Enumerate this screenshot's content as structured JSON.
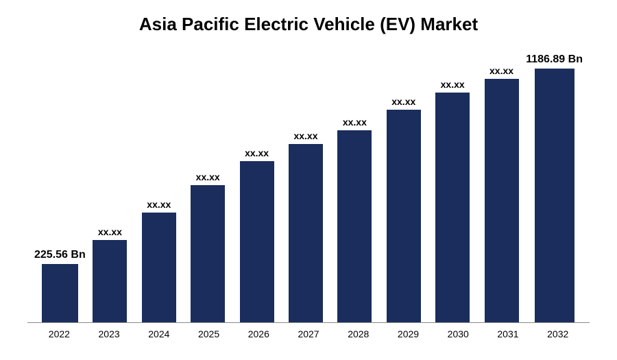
{
  "chart": {
    "type": "bar",
    "title": "Asia Pacific Electric Vehicle (EV) Market",
    "title_fontsize": 26,
    "title_color": "#000000",
    "categories": [
      "2022",
      "2023",
      "2024",
      "2025",
      "2026",
      "2027",
      "2028",
      "2029",
      "2030",
      "2031",
      "2032"
    ],
    "values": [
      85,
      120,
      160,
      200,
      235,
      260,
      280,
      310,
      335,
      355,
      370
    ],
    "labels": [
      "225.56 Bn",
      "xx.xx",
      "xx.xx",
      "xx.xx",
      "xx.xx",
      "xx.xx",
      "xx.xx",
      "xx.xx",
      "xx.xx",
      "xx.xx",
      "1186.89 Bn"
    ],
    "bar_color": "#1a2d5c",
    "background_color": "#ffffff",
    "axis_color": "#888888",
    "label_color": "#000000",
    "x_label_fontsize": 14,
    "value_label_fontsize": 14,
    "end_label_fontsize": 16,
    "max_height": 370,
    "bar_width_ratio": 0.7
  }
}
